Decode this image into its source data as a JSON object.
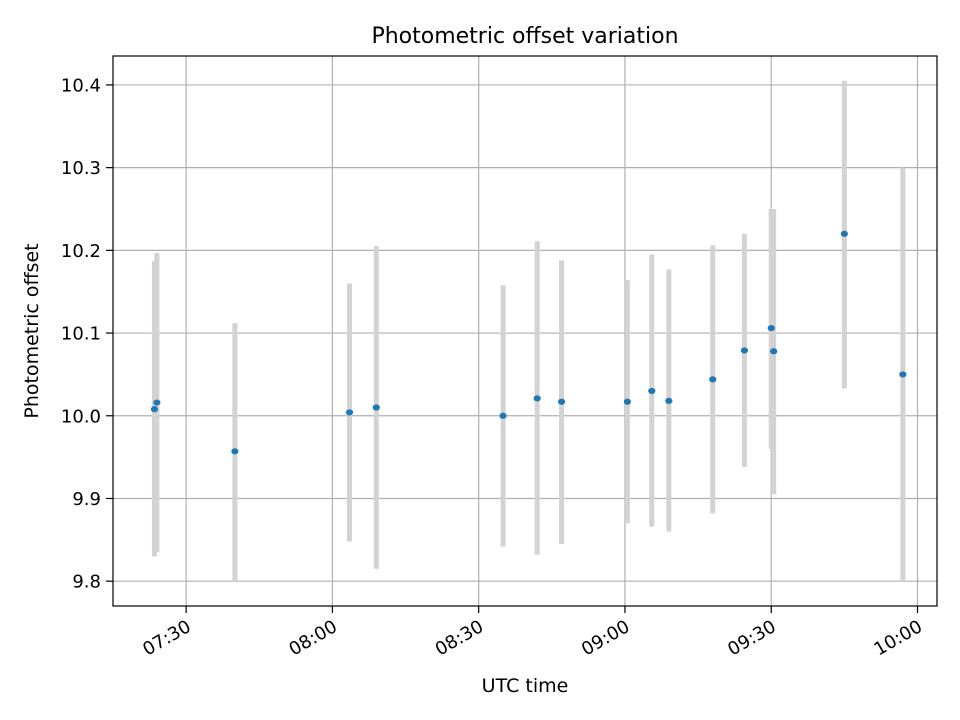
{
  "chart_data": {
    "type": "scatter",
    "title": "Photometric offset variation",
    "xlabel": "UTC time",
    "ylabel": "Photometric offset",
    "xlim": [
      "07:15",
      "10:04"
    ],
    "ylim": [
      9.77,
      10.435
    ],
    "grid": true,
    "x_ticks": [
      "07:30",
      "08:00",
      "08:30",
      "09:00",
      "09:30",
      "10:00"
    ],
    "y_ticks": [
      9.8,
      9.9,
      10.0,
      10.1,
      10.2,
      10.3,
      10.4
    ],
    "points": [
      {
        "x": "07:23:30",
        "y": 10.008,
        "err": [
          9.83,
          10.187
        ]
      },
      {
        "x": "07:24:00",
        "y": 10.016,
        "err": [
          9.835,
          10.197
        ]
      },
      {
        "x": "07:40:00",
        "y": 9.957,
        "err": [
          9.8,
          10.112
        ]
      },
      {
        "x": "08:03:30",
        "y": 10.004,
        "err": [
          9.848,
          10.16
        ]
      },
      {
        "x": "08:09:00",
        "y": 10.01,
        "err": [
          9.815,
          10.205
        ]
      },
      {
        "x": "08:35:00",
        "y": 10.0,
        "err": [
          9.842,
          10.158
        ]
      },
      {
        "x": "08:42:00",
        "y": 10.021,
        "err": [
          9.832,
          10.211
        ]
      },
      {
        "x": "08:47:00",
        "y": 10.017,
        "err": [
          9.845,
          10.188
        ]
      },
      {
        "x": "09:00:30",
        "y": 10.017,
        "err": [
          9.87,
          10.164
        ]
      },
      {
        "x": "09:05:30",
        "y": 10.03,
        "err": [
          9.866,
          10.195
        ]
      },
      {
        "x": "09:09:00",
        "y": 10.018,
        "err": [
          9.86,
          10.177
        ]
      },
      {
        "x": "09:18:00",
        "y": 10.044,
        "err": [
          9.882,
          10.206
        ]
      },
      {
        "x": "09:24:30",
        "y": 10.079,
        "err": [
          9.938,
          10.22
        ]
      },
      {
        "x": "09:30:00",
        "y": 10.106,
        "err": [
          9.96,
          10.25
        ]
      },
      {
        "x": "09:30:30",
        "y": 10.078,
        "err": [
          9.905,
          10.25
        ]
      },
      {
        "x": "09:45:00",
        "y": 10.22,
        "err": [
          10.033,
          10.405
        ]
      },
      {
        "x": "09:57:00",
        "y": 10.05,
        "err": [
          9.8,
          10.3
        ]
      }
    ],
    "colors": {
      "marker": "#1f77b4",
      "errorbar": "#d3d3d3",
      "grid": "#b0b0b0"
    }
  }
}
